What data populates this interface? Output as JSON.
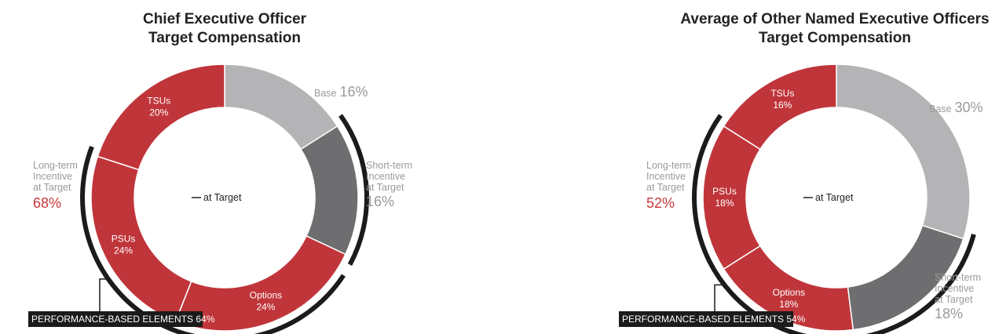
{
  "colors": {
    "base": "#b4b4b6",
    "short_term": "#6e6e71",
    "long_term": "#c0353a",
    "arc": "#1b1b1b",
    "perf_box": "#1b1b1b"
  },
  "chart_data": [
    {
      "type": "pie",
      "title": [
        "Chief Executive Officer",
        "Target Compensation"
      ],
      "center_label": "at Target",
      "slices": [
        {
          "key": "base",
          "label": "Base",
          "pct_text": "16%",
          "value": 16,
          "color_key": "base"
        },
        {
          "key": "sti",
          "label": [
            "Short-term",
            "Incentive",
            "at Target"
          ],
          "pct_text": "16%",
          "value": 16,
          "color_key": "short_term"
        },
        {
          "key": "options",
          "label": "Options",
          "pct_text": "24%",
          "value": 24,
          "color_key": "long_term"
        },
        {
          "key": "psus",
          "label": "PSUs",
          "pct_text": "24%",
          "value": 24,
          "color_key": "long_term"
        },
        {
          "key": "tsus",
          "label": "TSUs",
          "pct_text": "20%",
          "value": 20,
          "color_key": "long_term"
        }
      ],
      "ltip": {
        "label": [
          "Long-term",
          "Incentive",
          "at Target"
        ],
        "pct_text": "68%"
      },
      "performance_box": "PERFORMANCE-BASED ELEMENTS 64%",
      "performance_value": 64
    },
    {
      "type": "pie",
      "title": [
        "Average of Other Named Executive Officers",
        "Target Compensation"
      ],
      "center_label": "at Target",
      "slices": [
        {
          "key": "base",
          "label": "Base",
          "pct_text": "30%",
          "value": 30,
          "color_key": "base"
        },
        {
          "key": "sti",
          "label": [
            "Short-term",
            "Incentive",
            "at Target"
          ],
          "pct_text": "18%",
          "value": 18,
          "color_key": "short_term"
        },
        {
          "key": "options",
          "label": "Options",
          "pct_text": "18%",
          "value": 18,
          "color_key": "long_term"
        },
        {
          "key": "psus",
          "label": "PSUs",
          "pct_text": "18%",
          "value": 18,
          "color_key": "long_term"
        },
        {
          "key": "tsus",
          "label": "TSUs",
          "pct_text": "16%",
          "value": 16,
          "color_key": "long_term"
        }
      ],
      "ltip": {
        "label": [
          "Long-term",
          "Incentive",
          "at Target"
        ],
        "pct_text": "52%"
      },
      "performance_box": "PERFORMANCE-BASED ELEMENTS 54%",
      "performance_value": 54
    }
  ]
}
